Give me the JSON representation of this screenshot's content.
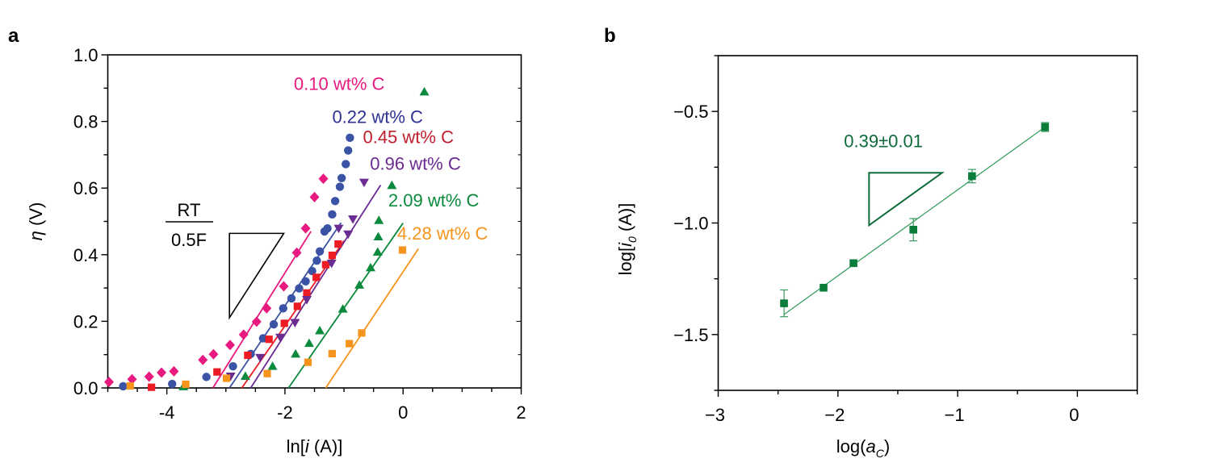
{
  "chart_data": [
    {
      "panel": "a",
      "type": "scatter",
      "xlabel_parts": [
        "ln[",
        "i",
        " (A)]"
      ],
      "ylabel_parts": [
        "η",
        " (V)"
      ],
      "xlim": [
        -5,
        2
      ],
      "ylim": [
        0,
        1.0
      ],
      "xticks": [
        -4,
        -2,
        0,
        2
      ],
      "xtick_labels": [
        "-4",
        "-2",
        "0",
        "2"
      ],
      "xminor_step": 0.5,
      "yticks": [
        0.0,
        0.2,
        0.4,
        0.6,
        0.8,
        1.0
      ],
      "ytick_labels": [
        "0.0",
        "0.2",
        "0.4",
        "0.6",
        "0.8",
        "1.0"
      ],
      "yminor_step": 0.1,
      "grid": false,
      "legend": "inline labels, top-right",
      "annotation": {
        "numerator": "RT",
        "denominator": "0.5F",
        "slope_triangle": {
          "top_left": [
            -2.94,
            0.464
          ],
          "top_right": [
            -2.02,
            0.464
          ],
          "bottom": [
            -2.94,
            0.211
          ]
        }
      },
      "series": [
        {
          "name": "0.10 wt% C",
          "marker": "diamond",
          "color": "#e8197f",
          "label_color": "#e8197f",
          "label_pos": [
            -1.85,
            0.895
          ],
          "points": [
            [
              -4.98,
              0.018
            ],
            [
              -4.59,
              0.026
            ],
            [
              -4.3,
              0.034
            ],
            [
              -4.09,
              0.046
            ],
            [
              -3.88,
              0.05
            ],
            [
              -3.39,
              0.084
            ],
            [
              -3.21,
              0.101
            ],
            [
              -2.93,
              0.129
            ],
            [
              -2.7,
              0.16
            ],
            [
              -2.48,
              0.199
            ],
            [
              -2.31,
              0.239
            ],
            [
              -2.02,
              0.305
            ],
            [
              -1.8,
              0.406
            ],
            [
              -1.65,
              0.479
            ],
            [
              -1.5,
              0.573
            ],
            [
              -1.35,
              0.628
            ]
          ],
          "fit": [
            [
              -3.22,
              0.0
            ],
            [
              -1.56,
              0.47
            ]
          ]
        },
        {
          "name": "0.22 wt% C",
          "marker": "circle",
          "color": "#3a53a4",
          "label_color": "#2e3192",
          "label_pos": [
            -1.2,
            0.795
          ],
          "points": [
            [
              -4.74,
              0.005
            ],
            [
              -3.91,
              0.012
            ],
            [
              -3.33,
              0.033
            ],
            [
              -2.88,
              0.065
            ],
            [
              -2.58,
              0.102
            ],
            [
              -2.37,
              0.149
            ],
            [
              -2.19,
              0.191
            ],
            [
              -2.03,
              0.239
            ],
            [
              -1.89,
              0.269
            ],
            [
              -1.76,
              0.299
            ],
            [
              -1.65,
              0.32
            ],
            [
              -1.54,
              0.351
            ],
            [
              -1.46,
              0.382
            ],
            [
              -1.41,
              0.41
            ],
            [
              -1.33,
              0.47
            ],
            [
              -1.28,
              0.479
            ],
            [
              -1.2,
              0.521
            ],
            [
              -1.15,
              0.561
            ],
            [
              -1.07,
              0.604
            ],
            [
              -1.04,
              0.63
            ],
            [
              -0.97,
              0.672
            ],
            [
              -0.93,
              0.713
            ],
            [
              -0.9,
              0.751
            ]
          ],
          "fit": [
            [
              -2.94,
              0.0
            ],
            [
              -1.05,
              0.496
            ]
          ]
        },
        {
          "name": "0.45 wt% C",
          "marker": "square",
          "color": "#ed1c24",
          "label_color": "#be1e2d",
          "label_pos": [
            -0.68,
            0.735
          ],
          "points": [
            [
              -4.26,
              0.002
            ],
            [
              -3.15,
              0.048
            ],
            [
              -2.63,
              0.098
            ],
            [
              -2.27,
              0.146
            ],
            [
              -2.01,
              0.194
            ],
            [
              -1.79,
              0.245
            ],
            [
              -1.63,
              0.285
            ],
            [
              -1.47,
              0.332
            ],
            [
              -1.31,
              0.37
            ],
            [
              -1.2,
              0.398
            ],
            [
              -1.1,
              0.432
            ]
          ],
          "fit": [
            [
              -2.73,
              0.0
            ],
            [
              -1.0,
              0.442
            ]
          ]
        },
        {
          "name": "0.96 wt% C",
          "marker": "triangle-down",
          "color": "#6a2c91",
          "label_color": "#6a2c91",
          "label_pos": [
            -0.56,
            0.655
          ],
          "points": [
            [
              -2.92,
              0.035
            ],
            [
              -2.42,
              0.091
            ],
            [
              -2.08,
              0.152
            ],
            [
              -1.83,
              0.196
            ],
            [
              -1.63,
              0.265
            ],
            [
              -1.21,
              0.374
            ],
            [
              -1.09,
              0.479
            ],
            [
              -0.93,
              0.462
            ],
            [
              -0.85,
              0.507
            ],
            [
              -0.66,
              0.617
            ]
          ],
          "fit": [
            [
              -2.58,
              0.0
            ],
            [
              -0.38,
              0.609
            ]
          ]
        },
        {
          "name": "2.09 wt% C",
          "marker": "triangle-up",
          "color": "#0b8a3e",
          "label_color": "#0b8a3e",
          "label_pos": [
            -0.25,
            0.545
          ],
          "points": [
            [
              -3.72,
              0.004
            ],
            [
              -2.67,
              0.035
            ],
            [
              -2.21,
              0.065
            ],
            [
              -1.82,
              0.102
            ],
            [
              -1.59,
              0.134
            ],
            [
              -1.41,
              0.172
            ],
            [
              -1.02,
              0.237
            ],
            [
              -0.74,
              0.309
            ],
            [
              -0.55,
              0.361
            ],
            [
              -0.43,
              0.408
            ],
            [
              -0.42,
              0.454
            ],
            [
              -0.41,
              0.503
            ],
            [
              -0.19,
              0.608
            ],
            [
              0.36,
              0.889
            ]
          ],
          "fit": [
            [
              -1.94,
              0.0
            ],
            [
              0.0,
              0.495
            ]
          ]
        },
        {
          "name": "4.28 wt% C",
          "marker": "square",
          "color": "#f7941d",
          "label_color": "#f7941d",
          "label_pos": [
            -0.1,
            0.445
          ],
          "points": [
            [
              -4.62,
              0.006
            ],
            [
              -3.68,
              0.011
            ],
            [
              -2.99,
              0.029
            ],
            [
              -2.3,
              0.043
            ],
            [
              -1.61,
              0.077
            ],
            [
              -1.2,
              0.103
            ],
            [
              -0.91,
              0.133
            ],
            [
              -0.7,
              0.165
            ],
            [
              -0.01,
              0.414
            ]
          ],
          "fit": [
            [
              -1.31,
              0.0
            ],
            [
              0.26,
              0.418
            ]
          ]
        }
      ]
    },
    {
      "panel": "b",
      "type": "scatter",
      "xlabel_parts": [
        "log(",
        "a",
        "C",
        ")"
      ],
      "ylabel_parts": [
        "log[",
        "i",
        "0",
        " (A)]"
      ],
      "xlim": [
        -3,
        0.5
      ],
      "ylim": [
        -1.75,
        -0.25
      ],
      "xticks": [
        -3,
        -2,
        -1,
        0
      ],
      "xtick_labels": [
        "−3",
        "−2",
        "−1",
        "0"
      ],
      "xminor_step": 0.5,
      "yticks": [
        -1.5,
        -1.0,
        -0.5
      ],
      "ytick_labels": [
        "−1.5",
        "−1.0",
        "−0.5"
      ],
      "yminor_step": 0.25,
      "grid": false,
      "color": "#0b7d3b",
      "points": [
        {
          "x": -2.45,
          "y": -1.36,
          "err_low": -1.42,
          "err_high": -1.3
        },
        {
          "x": -2.12,
          "y": -1.29,
          "err_low": -1.29,
          "err_high": -1.29
        },
        {
          "x": -1.87,
          "y": -1.18,
          "err_low": -1.18,
          "err_high": -1.18
        },
        {
          "x": -1.37,
          "y": -1.03,
          "err_low": -1.08,
          "err_high": -0.98
        },
        {
          "x": -0.88,
          "y": -0.79,
          "err_low": -0.82,
          "err_high": -0.76
        },
        {
          "x": -0.27,
          "y": -0.57,
          "err_low": -0.59,
          "err_high": -0.55
        }
      ],
      "fit": [
        [
          -2.45,
          -1.41
        ],
        [
          -0.27,
          -0.57
        ]
      ],
      "slope_label": "0.39±0.01",
      "slope_label_pos": [
        -1.62,
        -0.66
      ],
      "slope_triangle": {
        "top_left": [
          -1.74,
          -0.775
        ],
        "top_right": [
          -1.13,
          -0.775
        ],
        "bottom": [
          -1.74,
          -1.01
        ]
      }
    }
  ]
}
